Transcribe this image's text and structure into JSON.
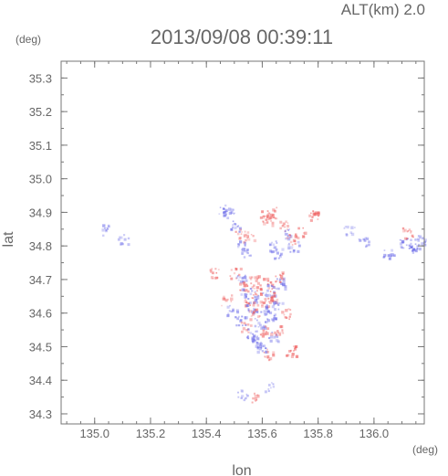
{
  "chart_data": {
    "type": "scatter",
    "title": "2013/09/08 00:39:11",
    "subtitle": "ALT(km) 2.0",
    "xlabel": "lon",
    "ylabel": "lat",
    "x_unit": "(deg)",
    "y_unit": "(deg)",
    "xlim": [
      134.88,
      136.18
    ],
    "ylim": [
      34.27,
      35.35
    ],
    "x_ticks": [
      "135.0",
      "135.2",
      "135.4",
      "135.6",
      "135.8",
      "136.0"
    ],
    "y_ticks": [
      "34.3",
      "34.4",
      "34.5",
      "34.6",
      "34.7",
      "34.8",
      "34.9",
      "35.0",
      "35.1",
      "35.2",
      "35.3"
    ],
    "colors": {
      "positive": "#ee5a5a",
      "negative": "#6a6ae8",
      "frame": "#777777"
    },
    "series": [
      {
        "points": [
          [
            135.04,
            34.85,
            -0.5
          ],
          [
            135.1,
            34.82,
            -0.4
          ],
          [
            135.43,
            34.72,
            0.6
          ],
          [
            135.46,
            34.91,
            -0.6
          ],
          [
            135.48,
            34.9,
            -0.5
          ],
          [
            135.5,
            34.86,
            -0.7
          ],
          [
            135.52,
            34.84,
            0.5
          ],
          [
            135.53,
            34.8,
            -0.6
          ],
          [
            135.54,
            34.78,
            -0.4
          ],
          [
            135.55,
            34.83,
            0.4
          ],
          [
            135.61,
            34.89,
            0.7
          ],
          [
            135.62,
            34.88,
            0.6
          ],
          [
            135.63,
            34.9,
            0.5
          ],
          [
            135.64,
            34.8,
            -0.5
          ],
          [
            135.65,
            34.78,
            -0.6
          ],
          [
            135.67,
            34.86,
            0.5
          ],
          [
            135.69,
            34.84,
            -0.6
          ],
          [
            135.7,
            34.82,
            0.4
          ],
          [
            135.71,
            34.8,
            -0.5
          ],
          [
            135.73,
            34.84,
            0.6
          ],
          [
            135.78,
            34.89,
            0.8
          ],
          [
            135.91,
            34.85,
            -0.3
          ],
          [
            135.96,
            34.81,
            -0.5
          ],
          [
            136.05,
            34.78,
            -0.7
          ],
          [
            136.11,
            34.81,
            -0.8
          ],
          [
            136.12,
            34.84,
            0.7
          ],
          [
            136.14,
            34.79,
            -0.9
          ],
          [
            136.16,
            34.82,
            -0.7
          ],
          [
            135.5,
            34.72,
            0.5
          ],
          [
            135.52,
            34.7,
            -0.6
          ],
          [
            135.53,
            34.68,
            0.7
          ],
          [
            135.54,
            34.66,
            -0.7
          ],
          [
            135.55,
            34.64,
            0.6
          ],
          [
            135.56,
            34.62,
            -0.8
          ],
          [
            135.57,
            34.6,
            0.5
          ],
          [
            135.58,
            34.67,
            0.8
          ],
          [
            135.59,
            34.65,
            -0.5
          ],
          [
            135.6,
            34.63,
            0.7
          ],
          [
            135.61,
            34.61,
            -0.6
          ],
          [
            135.62,
            34.69,
            0.6
          ],
          [
            135.63,
            34.67,
            -0.7
          ],
          [
            135.64,
            34.65,
            0.8
          ],
          [
            135.65,
            34.63,
            -0.5
          ],
          [
            135.66,
            34.71,
            0.7
          ],
          [
            135.67,
            34.69,
            -0.6
          ],
          [
            135.68,
            34.6,
            0.5
          ],
          [
            135.52,
            34.58,
            -0.7
          ],
          [
            135.54,
            34.56,
            0.4
          ],
          [
            135.56,
            34.54,
            -0.6
          ],
          [
            135.58,
            34.52,
            -0.8
          ],
          [
            135.6,
            34.5,
            -0.7
          ],
          [
            135.62,
            34.48,
            0.6
          ],
          [
            135.64,
            34.53,
            -0.5
          ],
          [
            135.66,
            34.55,
            0.5
          ],
          [
            135.7,
            34.49,
            0.7
          ],
          [
            135.53,
            34.36,
            -0.4
          ],
          [
            135.57,
            34.35,
            0.4
          ],
          [
            135.62,
            34.38,
            -0.3
          ],
          [
            135.49,
            34.61,
            -0.5
          ],
          [
            135.47,
            34.64,
            0.4
          ],
          [
            135.59,
            34.57,
            -0.6
          ],
          [
            135.61,
            34.55,
            0.6
          ],
          [
            135.63,
            34.59,
            -0.7
          ],
          [
            135.57,
            34.7,
            0.5
          ]
        ]
      }
    ]
  }
}
